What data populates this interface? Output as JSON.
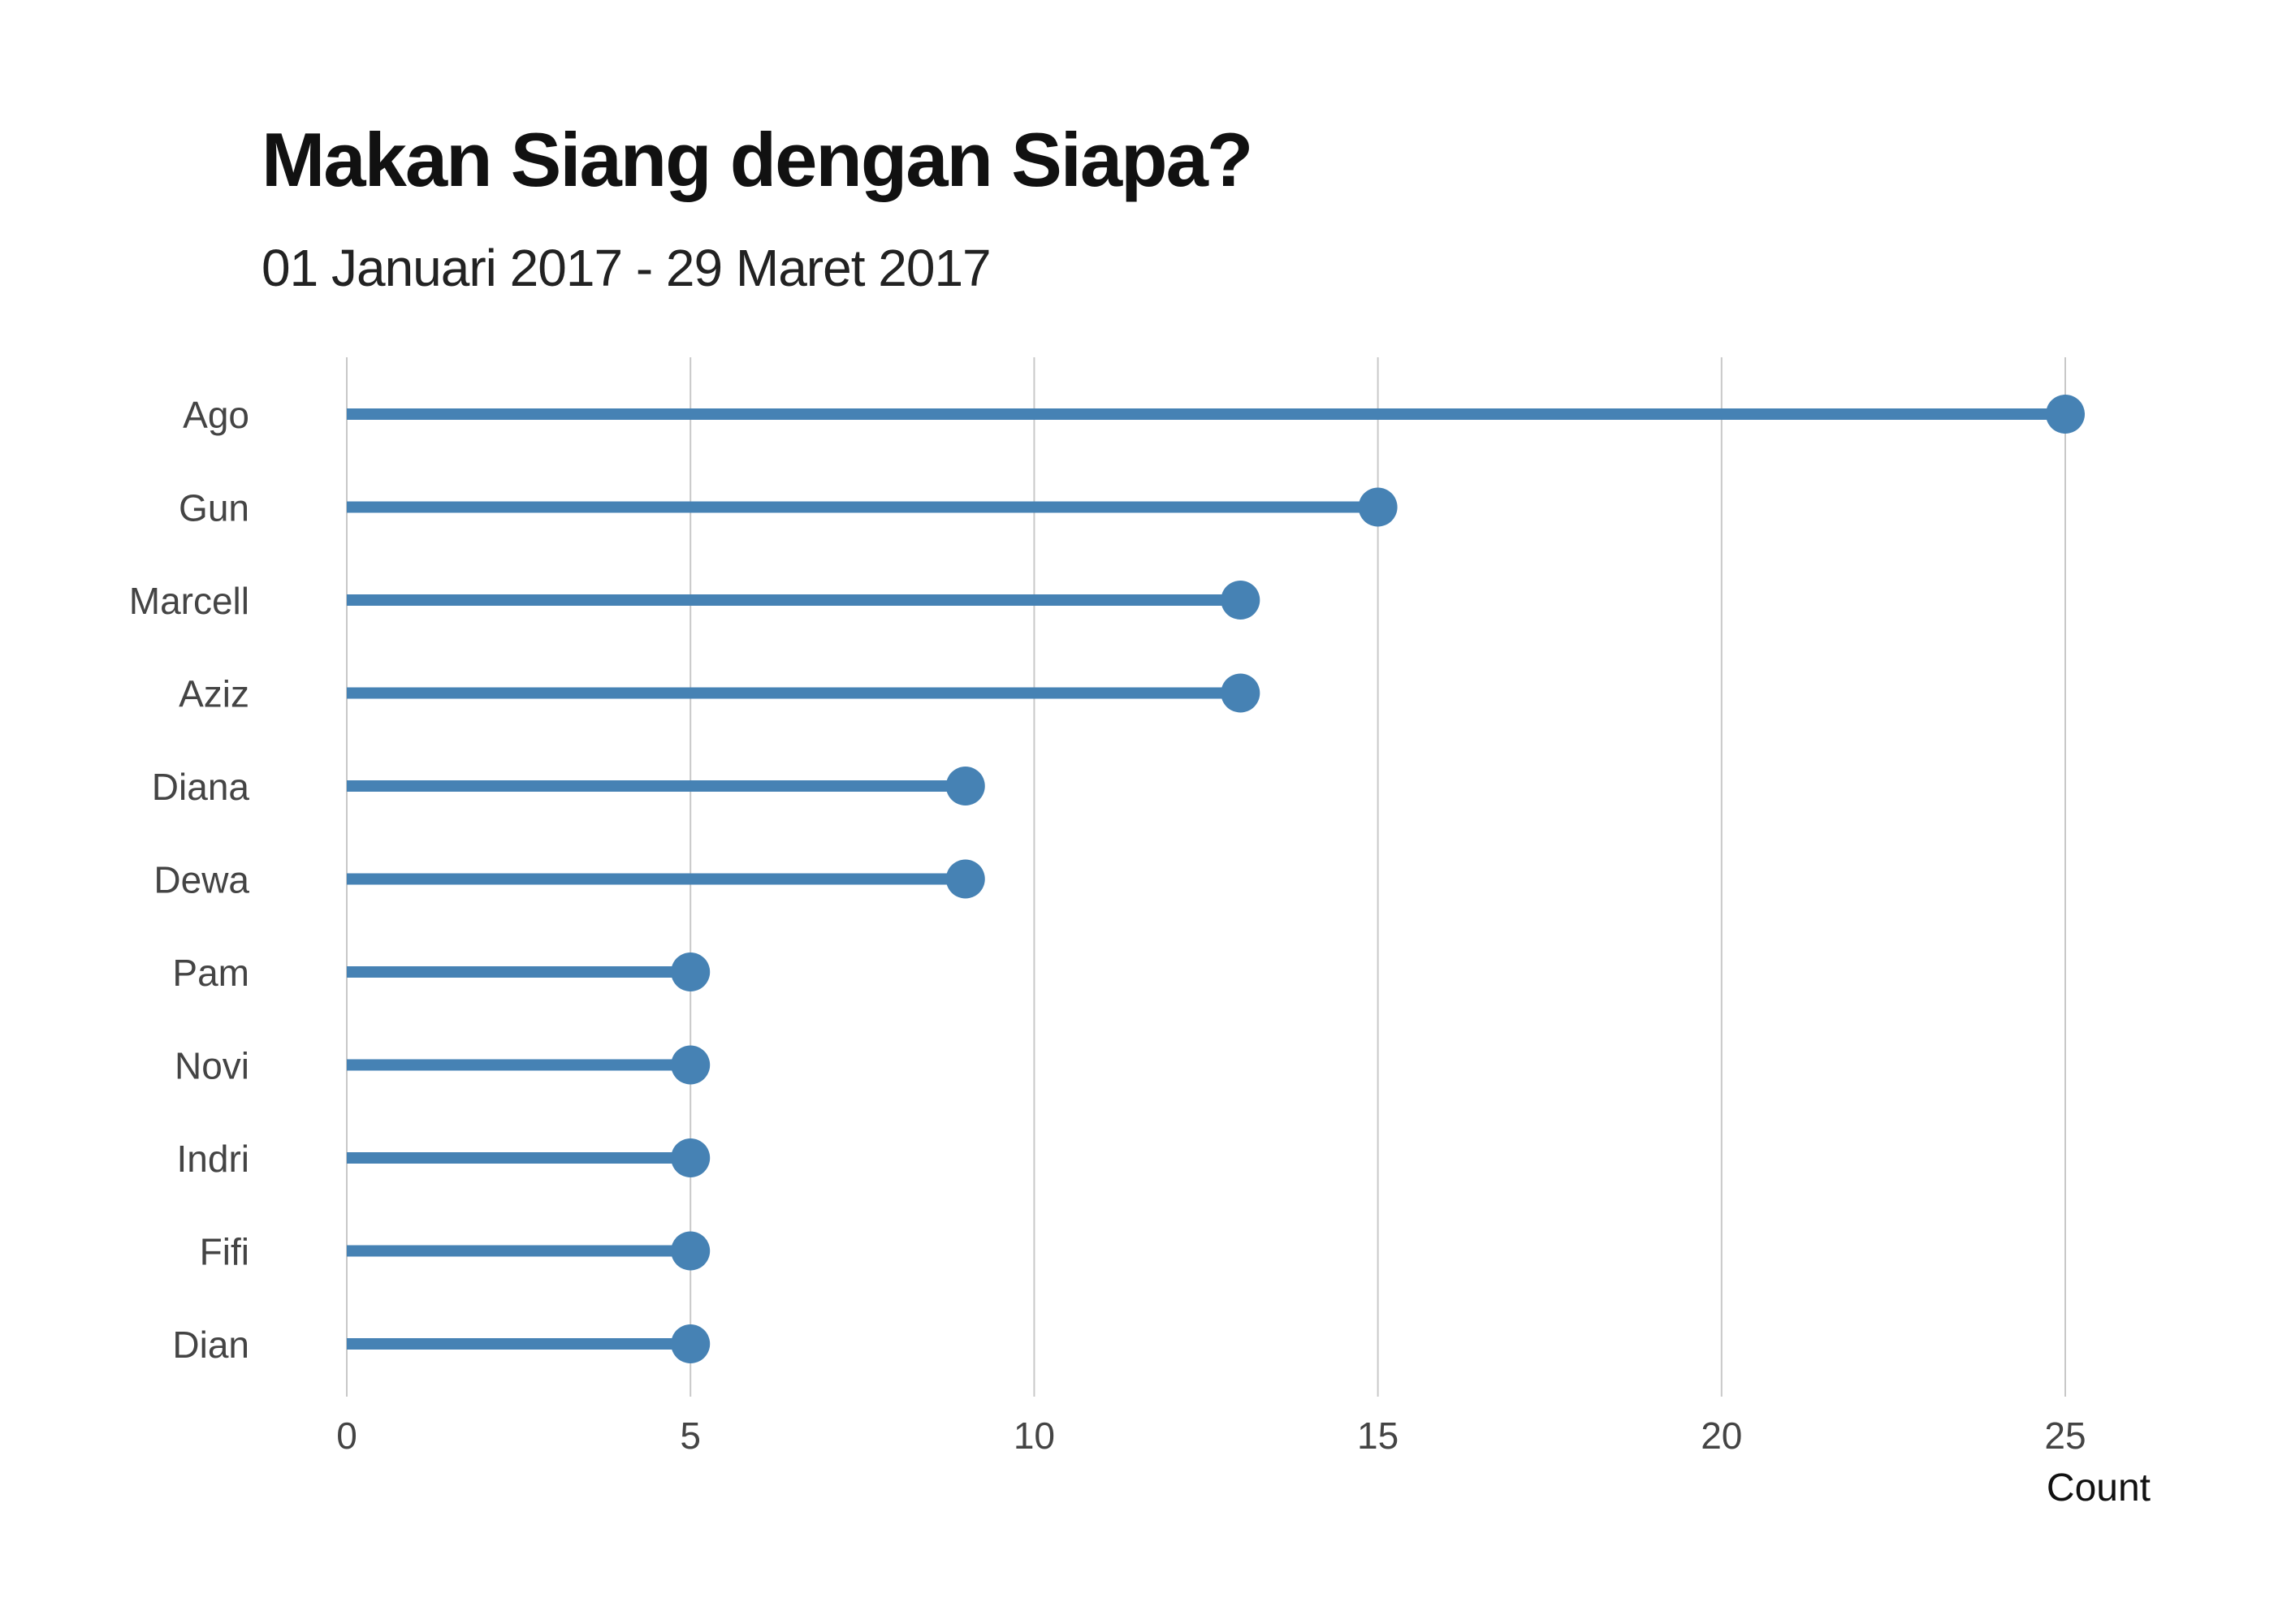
{
  "chart_data": {
    "type": "lollipop",
    "title": "Makan Siang dengan Siapa?",
    "subtitle": "01 Januari 2017 - 29 Maret 2017",
    "xlabel": "Count",
    "ylabel": "",
    "categories": [
      "Ago",
      "Gun",
      "Marcell",
      "Aziz",
      "Diana",
      "Dewa",
      "Pam",
      "Novi",
      "Indri",
      "Fifi",
      "Dian"
    ],
    "values": [
      25,
      15,
      13,
      13,
      9,
      9,
      5,
      5,
      5,
      5,
      5
    ],
    "xlim": [
      0,
      25
    ],
    "xticks": [
      0,
      5,
      10,
      15,
      20,
      25
    ],
    "grid": "vertical",
    "legend": "none",
    "color": "#4682b4",
    "grid_color": "#c8c8c8"
  }
}
